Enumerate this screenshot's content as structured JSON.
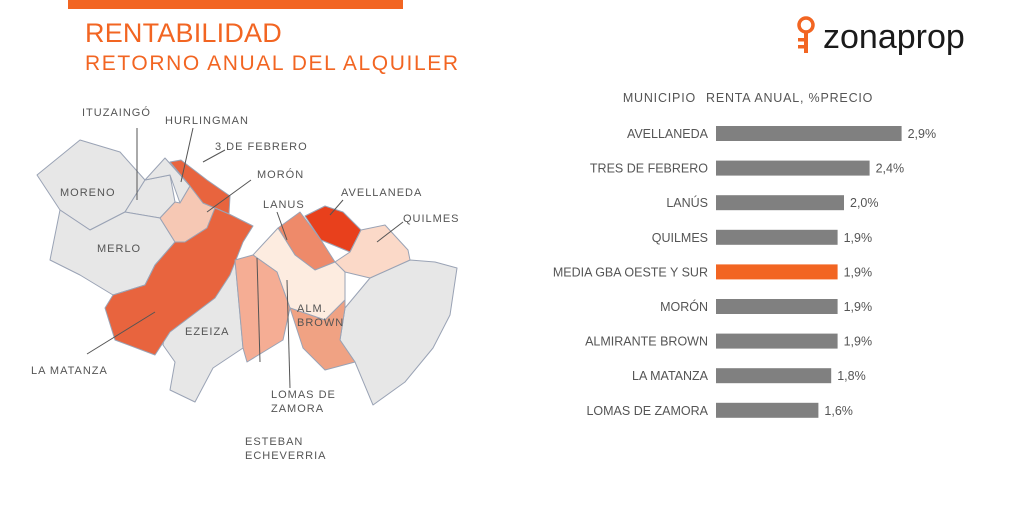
{
  "header": {
    "title": "RENTABILIDAD",
    "subtitle": "RETORNO ANUAL DEL ALQUILER"
  },
  "logo": {
    "text": "zonaprop",
    "icon": "key-icon",
    "color": "#f26522"
  },
  "colors": {
    "accent": "#f26522",
    "bar": "#808080",
    "highlight_bar": "#f26522",
    "map_gray": "#e7e7e7",
    "map_border": "#9aa3b5"
  },
  "map": {
    "labels": {
      "ituzaingo": "ITUZAINGÓ",
      "hurlingman": "HURLINGMAN",
      "tres_de_febrero": "3 DE FEBRERO",
      "moron": "MORÓN",
      "avellaneda": "AVELLANEDA",
      "lanus": "LANUS",
      "quilmes": "QUILMES",
      "moreno": "MORENO",
      "merlo": "MERLO",
      "ezeiza": "EZEIZA",
      "alm_brown_1": "ALM.",
      "alm_brown_2": "BROWN",
      "la_matanza": "LA MATANZA",
      "lomas_1": "LOMAS DE",
      "lomas_2": "ZAMORA",
      "esteban_1": "ESTEBAN",
      "esteban_2": "ECHEVERRIA"
    }
  },
  "chart_data": {
    "type": "bar",
    "orientation": "horizontal",
    "column_headers": [
      "MUNICIPIO",
      "RENTA ANUAL, %PRECIO"
    ],
    "categories": [
      "AVELLANEDA",
      "TRES DE FEBRERO",
      "LANÚS",
      "QUILMES",
      "MEDIA GBA OESTE Y SUR",
      "MORÓN",
      "ALMIRANTE BROWN",
      "LA MATANZA",
      "LOMAS DE ZAMORA"
    ],
    "values": [
      2.9,
      2.4,
      2.0,
      1.9,
      1.9,
      1.9,
      1.9,
      1.8,
      1.6
    ],
    "value_labels": [
      "2,9%",
      "2,4%",
      "2,0%",
      "1,9%",
      "1,9%",
      "1,9%",
      "1,9%",
      "1,8%",
      "1,6%"
    ],
    "highlight": "MEDIA GBA OESTE Y SUR",
    "grid": false,
    "legend": "none"
  }
}
